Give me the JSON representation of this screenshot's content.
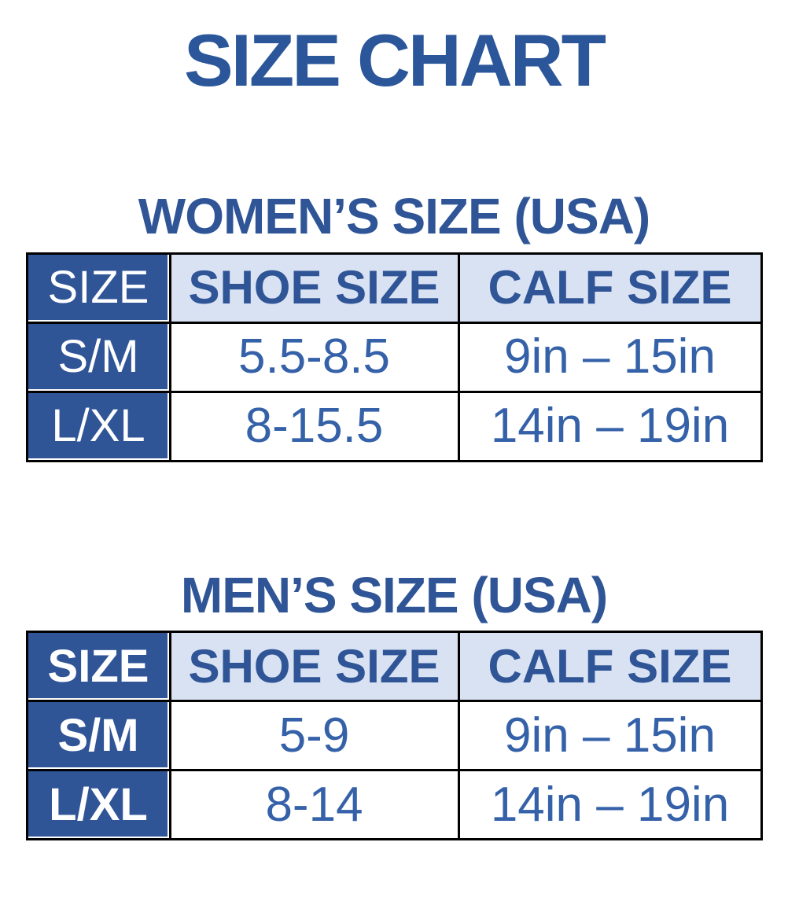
{
  "page": {
    "title": "SIZE CHART"
  },
  "colors": {
    "title_blue": "#2B579A",
    "heading_blue": "#2F5597",
    "dark_cell_bg": "#2F5597",
    "dark_cell_text": "#FFFFFF",
    "light_cell_bg": "#D9E2F3",
    "header_text_blue": "#2F5597",
    "data_text_blue": "#3561A8",
    "border": "#000000"
  },
  "tables": [
    {
      "heading": "WOMEN’S SIZE (USA)",
      "columns": [
        "SIZE",
        "SHOE SIZE",
        "CALF SIZE"
      ],
      "rows": [
        {
          "size": "S/M",
          "shoe": "5.5-8.5",
          "calf": "9in – 15in"
        },
        {
          "size": "L/XL",
          "shoe": "8-15.5",
          "calf": "14in – 19in"
        }
      ]
    },
    {
      "heading": "MEN’S SIZE (USA)",
      "columns": [
        "SIZE",
        "SHOE SIZE",
        "CALF SIZE"
      ],
      "rows": [
        {
          "size": "S/M",
          "shoe": "5-9",
          "calf": "9in – 15in"
        },
        {
          "size": "L/XL",
          "shoe": "8-14",
          "calf": "14in – 19in"
        }
      ]
    }
  ]
}
